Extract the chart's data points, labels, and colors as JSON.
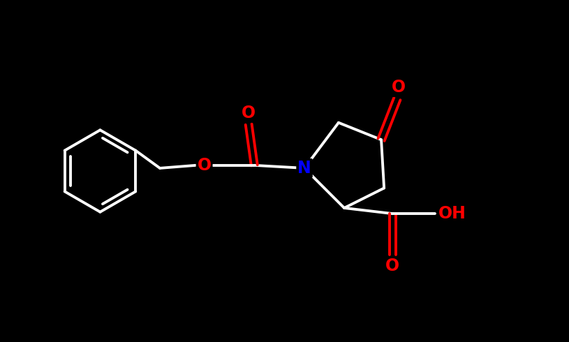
{
  "background_color": "#000000",
  "bond_color": "#ffffff",
  "N_color": "#0000ff",
  "O_color": "#ff0000",
  "line_width": 2.8,
  "fig_width": 8.15,
  "fig_height": 4.9,
  "xlim": [
    0,
    10
  ],
  "ylim": [
    0,
    6
  ],
  "font_size": 17
}
